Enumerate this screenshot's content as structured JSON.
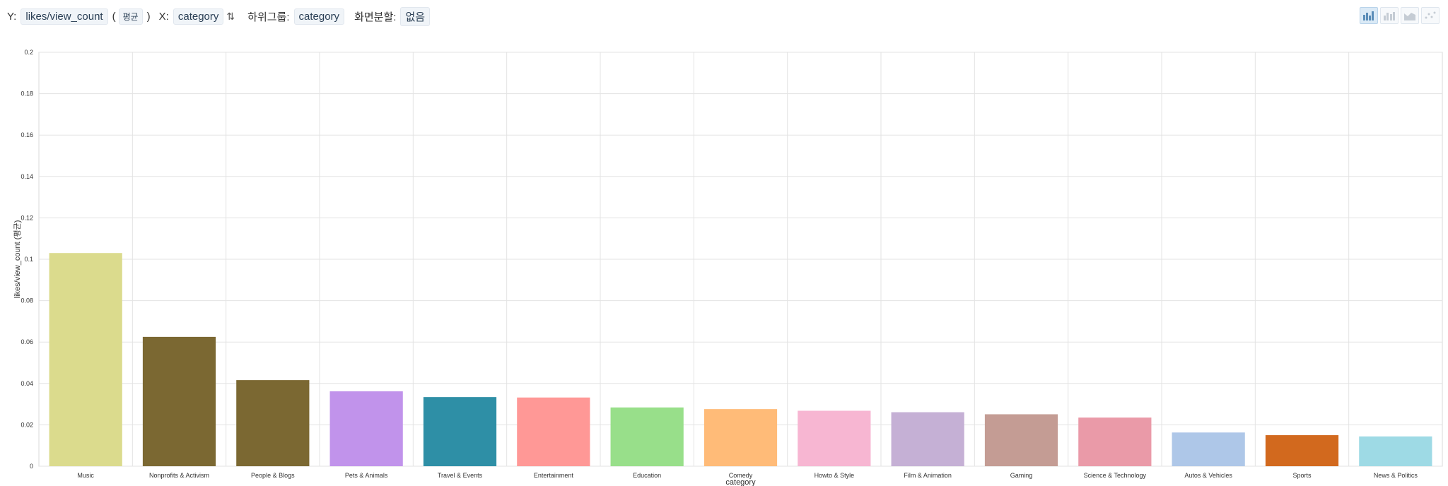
{
  "controls": {
    "y_label": "Y:",
    "y_value": "likes/view_count",
    "agg_open": "(",
    "agg_value": "평균",
    "agg_close": ")",
    "x_label": "X:",
    "x_value": "category",
    "sort_icon": "sort-icon",
    "subgroup_label": "하위그룹:",
    "subgroup_value": "category",
    "split_label": "화면분할:",
    "split_value": "없음"
  },
  "chart_types": [
    {
      "name": "bar-chart-icon",
      "active": true
    },
    {
      "name": "grouped-bar-chart-icon",
      "active": false
    },
    {
      "name": "area-chart-icon",
      "active": false
    },
    {
      "name": "scatter-chart-icon",
      "active": false
    }
  ],
  "chart_data": {
    "type": "bar",
    "xlabel": "category",
    "ylabel": "likes/view_count (평균)",
    "ylim": [
      0,
      0.2
    ],
    "yticks": [
      "0",
      "0.02",
      "0.04",
      "0.06",
      "0.08",
      "0.1",
      "0.12",
      "0.14",
      "0.16",
      "0.18",
      "0.2"
    ],
    "grid": true,
    "categories": [
      "Music",
      "Nonprofits & Activism",
      "People & Blogs",
      "Pets & Animals",
      "Travel & Events",
      "Entertainment",
      "Education",
      "Comedy",
      "Howto & Style",
      "Film & Animation",
      "Gaming",
      "Science & Technology",
      "Autos & Vehicles",
      "Sports",
      "News & Politics"
    ],
    "values": [
      0.103,
      0.0625,
      0.0416,
      0.0362,
      0.0334,
      0.0332,
      0.0284,
      0.0276,
      0.0268,
      0.0261,
      0.0251,
      0.0235,
      0.0163,
      0.015,
      0.0144
    ],
    "colors": [
      "#dbdb8d",
      "#7b6832",
      "#7b6832",
      "#c193eb",
      "#2e8fa6",
      "#ff9896",
      "#98df8a",
      "#ffbb78",
      "#f7b6d2",
      "#c5b0d5",
      "#c49c94",
      "#ea9aa8",
      "#aec7e8",
      "#d2691e",
      "#9edae5"
    ]
  }
}
